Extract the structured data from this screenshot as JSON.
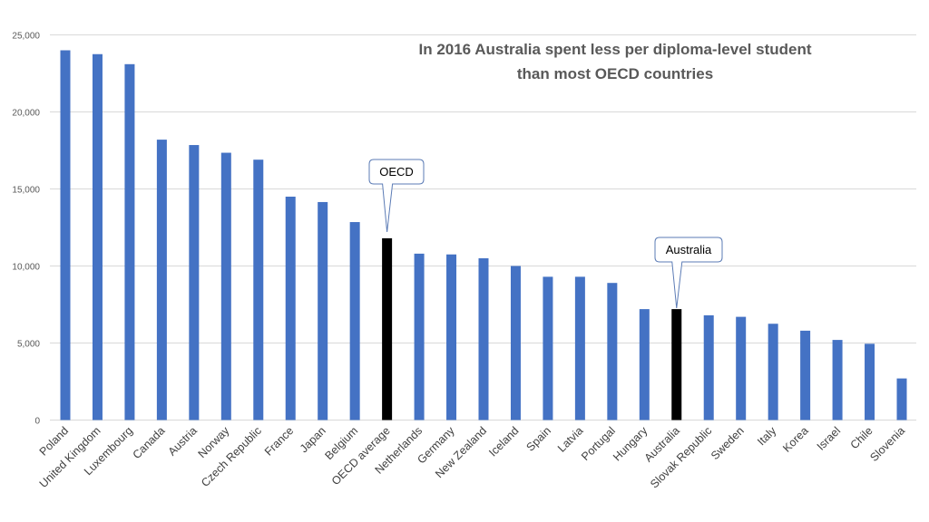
{
  "chart_data": {
    "type": "bar",
    "title_lines": [
      "In 2016 Australia spent less per diploma-level student",
      "than most OECD countries"
    ],
    "xlabel": "",
    "ylabel": "",
    "ylim": [
      0,
      25000
    ],
    "yticks": [
      0,
      5000,
      10000,
      15000,
      20000,
      25000
    ],
    "ytick_labels": [
      "0",
      "5,000",
      "10,000",
      "15,000",
      "20,000",
      "25,000"
    ],
    "grid": true,
    "categories": [
      "Poland",
      "United Kingdom",
      "Luxembourg",
      "Canada",
      "Austria",
      "Norway",
      "Czech Republic",
      "France",
      "Japan",
      "Belgium",
      "OECD average",
      "Netherlands",
      "Germany",
      "New Zealand",
      "Iceland",
      "Spain",
      "Latvia",
      "Portugal",
      "Hungary",
      "Australia",
      "Slovak Republic",
      "Sweden",
      "Italy",
      "Korea",
      "Israel",
      "Chile",
      "Slovenia"
    ],
    "values": [
      24000,
      23750,
      23100,
      18200,
      17850,
      17350,
      16900,
      14500,
      14150,
      12850,
      11800,
      10800,
      10750,
      10500,
      10000,
      9300,
      9300,
      8900,
      7200,
      7200,
      6800,
      6700,
      6250,
      5800,
      5200,
      4950,
      2700
    ],
    "highlight": [
      "OECD average",
      "Australia"
    ],
    "colors": {
      "default": "#4472C4",
      "highlight": "#000000",
      "grid": "#D9D9D9"
    },
    "annotations": [
      {
        "text": "OECD",
        "target": "OECD average"
      },
      {
        "text": "Australia",
        "target": "Australia"
      }
    ]
  }
}
